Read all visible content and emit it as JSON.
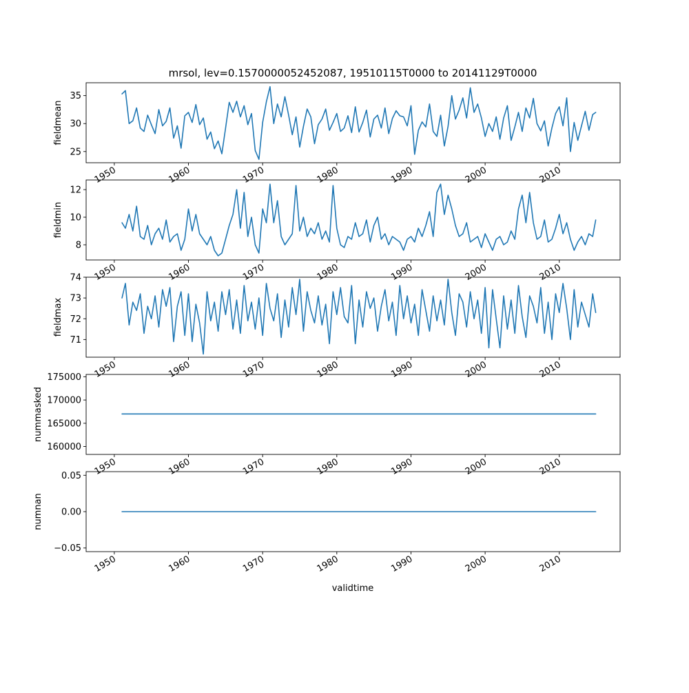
{
  "figure": {
    "title": "mrsol, lev=0.1570000052452087, 19510115T0000 to 20141129T0000",
    "xlabel": "validtime",
    "line_color": "#1f77b4"
  },
  "chart_data": [
    {
      "type": "line",
      "ylabel": "fieldmean",
      "x_range": [
        1946.2,
        2018.2
      ],
      "x_ticks": [
        1950,
        1960,
        1970,
        1980,
        1990,
        2000,
        2010
      ],
      "x_tick_labels": [
        "1950",
        "1960",
        "1970",
        "1980",
        "1990",
        "2000",
        "2010"
      ],
      "ylim": [
        23.0,
        37.3
      ],
      "y_ticks": [
        25,
        30,
        35
      ],
      "y_tick_labels": [
        "25",
        "30",
        "35"
      ],
      "grid": false,
      "x": [
        1951.04,
        1951.5,
        1952.0,
        1952.5,
        1953.0,
        1953.5,
        1954.0,
        1954.5,
        1955.0,
        1955.5,
        1956.0,
        1956.5,
        1957.0,
        1957.5,
        1958.0,
        1958.5,
        1959.0,
        1959.5,
        1960.0,
        1960.5,
        1961.0,
        1961.5,
        1962.0,
        1962.5,
        1963.0,
        1963.5,
        1964.0,
        1964.5,
        1965.0,
        1965.5,
        1966.0,
        1966.5,
        1967.0,
        1967.5,
        1968.0,
        1968.5,
        1969.0,
        1969.5,
        1970.0,
        1970.5,
        1971.0,
        1971.5,
        1972.0,
        1972.5,
        1973.0,
        1973.5,
        1974.0,
        1974.5,
        1975.0,
        1975.5,
        1976.0,
        1976.5,
        1977.0,
        1977.5,
        1978.0,
        1978.5,
        1979.0,
        1979.5,
        1980.0,
        1980.5,
        1981.0,
        1981.5,
        1982.0,
        1982.5,
        1983.0,
        1983.5,
        1984.0,
        1984.5,
        1985.0,
        1985.5,
        1986.0,
        1986.5,
        1987.0,
        1987.5,
        1988.0,
        1988.5,
        1989.0,
        1989.5,
        1990.0,
        1990.5,
        1991.0,
        1991.5,
        1992.0,
        1992.5,
        1993.0,
        1993.5,
        1994.0,
        1994.5,
        1995.0,
        1995.5,
        1996.0,
        1996.5,
        1997.0,
        1997.5,
        1998.0,
        1998.5,
        1999.0,
        1999.5,
        2000.0,
        2000.5,
        2001.0,
        2001.5,
        2002.0,
        2002.5,
        2003.0,
        2003.5,
        2004.0,
        2004.5,
        2005.0,
        2005.5,
        2006.0,
        2006.5,
        2007.0,
        2007.5,
        2008.0,
        2008.5,
        2009.0,
        2009.5,
        2010.0,
        2010.5,
        2011.0,
        2011.5,
        2012.0,
        2012.5,
        2013.0,
        2013.5,
        2014.0,
        2014.5,
        2014.91
      ],
      "values": [
        35.3,
        35.9,
        30.0,
        30.5,
        32.8,
        29.2,
        28.6,
        31.5,
        29.8,
        28.2,
        32.5,
        29.6,
        30.4,
        32.8,
        27.4,
        29.6,
        25.6,
        31.4,
        32.0,
        30.2,
        33.4,
        29.8,
        31.0,
        27.2,
        28.5,
        25.5,
        26.9,
        24.6,
        29.2,
        33.8,
        32.0,
        34.0,
        31.2,
        33.2,
        29.8,
        31.8,
        25.2,
        23.6,
        30.2,
        33.9,
        36.6,
        30.0,
        33.5,
        31.2,
        34.8,
        31.5,
        28.0,
        31.2,
        25.8,
        29.5,
        32.6,
        31.2,
        26.4,
        29.8,
        30.8,
        32.6,
        28.8,
        30.2,
        31.8,
        28.6,
        29.2,
        31.4,
        28.4,
        33.0,
        28.5,
        30.2,
        32.4,
        27.6,
        30.8,
        31.5,
        29.2,
        32.8,
        28.2,
        30.9,
        32.3,
        31.4,
        31.2,
        29.6,
        33.2,
        24.5,
        28.8,
        30.3,
        29.4,
        33.5,
        28.6,
        27.7,
        31.5,
        26.0,
        29.5,
        35.0,
        30.8,
        32.4,
        34.6,
        31.0,
        36.4,
        32.0,
        33.5,
        31.0,
        27.7,
        30.0,
        28.6,
        31.2,
        27.2,
        31.0,
        33.2,
        27.0,
        29.4,
        32.0,
        28.6,
        32.8,
        31.0,
        34.5,
        30.0,
        28.7,
        30.5,
        26.0,
        29.2,
        31.8,
        33.0,
        29.6,
        34.6,
        25.0,
        30.2,
        27.0,
        29.6,
        32.2,
        28.8,
        31.6,
        32.0
      ]
    },
    {
      "type": "line",
      "ylabel": "fieldmin",
      "x_range": [
        1946.2,
        2018.2
      ],
      "x_ticks": [
        1950,
        1960,
        1970,
        1980,
        1990,
        2000,
        2010
      ],
      "x_tick_labels": [
        "1950",
        "1960",
        "1970",
        "1980",
        "1990",
        "2000",
        "2010"
      ],
      "ylim": [
        6.9,
        12.7
      ],
      "y_ticks": [
        8,
        10,
        12
      ],
      "y_tick_labels": [
        "8",
        "10",
        "12"
      ],
      "grid": false,
      "x": [
        1951.04,
        1951.5,
        1952.0,
        1952.5,
        1953.0,
        1953.5,
        1954.0,
        1954.5,
        1955.0,
        1955.5,
        1956.0,
        1956.5,
        1957.0,
        1957.5,
        1958.0,
        1958.5,
        1959.0,
        1959.5,
        1960.0,
        1960.5,
        1961.0,
        1961.5,
        1962.0,
        1962.5,
        1963.0,
        1963.5,
        1964.0,
        1964.5,
        1965.0,
        1965.5,
        1966.0,
        1966.5,
        1967.0,
        1967.5,
        1968.0,
        1968.5,
        1969.0,
        1969.5,
        1970.0,
        1970.5,
        1971.0,
        1971.5,
        1972.0,
        1972.5,
        1973.0,
        1973.5,
        1974.0,
        1974.5,
        1975.0,
        1975.5,
        1976.0,
        1976.5,
        1977.0,
        1977.5,
        1978.0,
        1978.5,
        1979.0,
        1979.5,
        1980.0,
        1980.5,
        1981.0,
        1981.5,
        1982.0,
        1982.5,
        1983.0,
        1983.5,
        1984.0,
        1984.5,
        1985.0,
        1985.5,
        1986.0,
        1986.5,
        1987.0,
        1987.5,
        1988.0,
        1988.5,
        1989.0,
        1989.5,
        1990.0,
        1990.5,
        1991.0,
        1991.5,
        1992.0,
        1992.5,
        1993.0,
        1993.5,
        1994.0,
        1994.5,
        1995.0,
        1995.5,
        1996.0,
        1996.5,
        1997.0,
        1997.5,
        1998.0,
        1998.5,
        1999.0,
        1999.5,
        2000.0,
        2000.5,
        2001.0,
        2001.5,
        2002.0,
        2002.5,
        2003.0,
        2003.5,
        2004.0,
        2004.5,
        2005.0,
        2005.5,
        2006.0,
        2006.5,
        2007.0,
        2007.5,
        2008.0,
        2008.5,
        2009.0,
        2009.5,
        2010.0,
        2010.5,
        2011.0,
        2011.5,
        2012.0,
        2012.5,
        2013.0,
        2013.5,
        2014.0,
        2014.5,
        2014.91
      ],
      "values": [
        9.6,
        9.2,
        10.2,
        9.0,
        10.8,
        8.6,
        8.4,
        9.4,
        8.0,
        8.8,
        9.2,
        8.4,
        9.8,
        8.2,
        8.6,
        8.8,
        7.6,
        8.4,
        10.6,
        9.0,
        10.2,
        8.8,
        8.4,
        8.0,
        8.6,
        7.6,
        7.2,
        7.4,
        8.4,
        9.4,
        10.2,
        12.0,
        9.2,
        11.8,
        8.6,
        10.0,
        8.0,
        7.4,
        10.6,
        9.6,
        12.4,
        9.6,
        11.2,
        8.6,
        8.0,
        8.4,
        8.8,
        12.3,
        9.0,
        10.0,
        8.6,
        9.2,
        8.8,
        9.6,
        8.4,
        9.0,
        8.2,
        12.3,
        9.2,
        8.0,
        7.8,
        8.6,
        8.4,
        9.6,
        8.6,
        8.8,
        9.8,
        8.2,
        9.4,
        10.0,
        8.4,
        8.8,
        8.0,
        8.6,
        8.4,
        8.2,
        7.6,
        8.4,
        8.6,
        8.2,
        9.2,
        8.6,
        9.4,
        10.4,
        8.6,
        11.8,
        12.4,
        10.2,
        11.6,
        10.6,
        9.4,
        8.6,
        8.8,
        9.6,
        8.2,
        8.4,
        8.6,
        7.8,
        8.8,
        8.2,
        7.6,
        8.4,
        8.6,
        8.0,
        8.2,
        9.0,
        8.4,
        10.6,
        11.6,
        9.6,
        11.8,
        9.6,
        8.4,
        8.6,
        9.8,
        8.2,
        8.4,
        9.2,
        10.2,
        8.8,
        9.6,
        8.4,
        7.6,
        8.2,
        8.6,
        8.0,
        8.8,
        8.6,
        9.8
      ]
    },
    {
      "type": "line",
      "ylabel": "fieldmax",
      "x_range": [
        1946.2,
        2018.2
      ],
      "x_ticks": [
        1950,
        1960,
        1970,
        1980,
        1990,
        2000,
        2010
      ],
      "x_tick_labels": [
        "1950",
        "1960",
        "1970",
        "1980",
        "1990",
        "2000",
        "2010"
      ],
      "ylim": [
        70.15,
        74.0
      ],
      "y_ticks": [
        71,
        72,
        73,
        74
      ],
      "y_tick_labels": [
        "71",
        "72",
        "73",
        "74"
      ],
      "grid": false,
      "x": [
        1951.04,
        1951.5,
        1952.0,
        1952.5,
        1953.0,
        1953.5,
        1954.0,
        1954.5,
        1955.0,
        1955.5,
        1956.0,
        1956.5,
        1957.0,
        1957.5,
        1958.0,
        1958.5,
        1959.0,
        1959.5,
        1960.0,
        1960.5,
        1961.0,
        1961.5,
        1962.0,
        1962.5,
        1963.0,
        1963.5,
        1964.0,
        1964.5,
        1965.0,
        1965.5,
        1966.0,
        1966.5,
        1967.0,
        1967.5,
        1968.0,
        1968.5,
        1969.0,
        1969.5,
        1970.0,
        1970.5,
        1971.0,
        1971.5,
        1972.0,
        1972.5,
        1973.0,
        1973.5,
        1974.0,
        1974.5,
        1975.0,
        1975.5,
        1976.0,
        1976.5,
        1977.0,
        1977.5,
        1978.0,
        1978.5,
        1979.0,
        1979.5,
        1980.0,
        1980.5,
        1981.0,
        1981.5,
        1982.0,
        1982.5,
        1983.0,
        1983.5,
        1984.0,
        1984.5,
        1985.0,
        1985.5,
        1986.0,
        1986.5,
        1987.0,
        1987.5,
        1988.0,
        1988.5,
        1989.0,
        1989.5,
        1990.0,
        1990.5,
        1991.0,
        1991.5,
        1992.0,
        1992.5,
        1993.0,
        1993.5,
        1994.0,
        1994.5,
        1995.0,
        1995.5,
        1996.0,
        1996.5,
        1997.0,
        1997.5,
        1998.0,
        1998.5,
        1999.0,
        1999.5,
        2000.0,
        2000.5,
        2001.0,
        2001.5,
        2002.0,
        2002.5,
        2003.0,
        2003.5,
        2004.0,
        2004.5,
        2005.0,
        2005.5,
        2006.0,
        2006.5,
        2007.0,
        2007.5,
        2008.0,
        2008.5,
        2009.0,
        2009.5,
        2010.0,
        2010.5,
        2011.0,
        2011.5,
        2012.0,
        2012.5,
        2013.0,
        2013.5,
        2014.0,
        2014.5,
        2014.91
      ],
      "values": [
        73.0,
        73.7,
        71.7,
        72.8,
        72.4,
        73.2,
        71.3,
        72.6,
        72.0,
        73.1,
        71.6,
        73.4,
        72.6,
        73.5,
        70.9,
        72.6,
        73.3,
        71.2,
        73.2,
        70.9,
        72.7,
        71.8,
        70.3,
        73.3,
        71.9,
        72.8,
        71.4,
        73.3,
        72.2,
        73.4,
        71.5,
        72.9,
        71.3,
        73.6,
        71.9,
        72.8,
        71.5,
        73.0,
        71.2,
        73.7,
        72.5,
        71.9,
        73.2,
        71.1,
        72.9,
        71.6,
        73.5,
        72.2,
        73.9,
        71.4,
        73.3,
        72.4,
        71.8,
        73.1,
        71.7,
        72.7,
        70.8,
        73.3,
        72.2,
        73.5,
        72.1,
        71.8,
        73.6,
        70.8,
        72.9,
        71.6,
        73.3,
        72.5,
        73.0,
        71.4,
        72.6,
        73.4,
        71.9,
        72.8,
        71.2,
        73.6,
        72.0,
        73.1,
        71.8,
        72.7,
        71.2,
        73.4,
        72.4,
        71.4,
        73.1,
        71.9,
        72.9,
        71.7,
        73.9,
        72.3,
        71.2,
        73.2,
        72.8,
        71.6,
        73.3,
        72.0,
        72.9,
        71.3,
        73.5,
        70.6,
        73.4,
        72.0,
        70.6,
        73.1,
        71.5,
        72.9,
        71.3,
        73.6,
        72.1,
        71.1,
        73.1,
        72.6,
        71.8,
        73.5,
        71.3,
        72.8,
        71.0,
        73.2,
        72.3,
        73.7,
        72.5,
        71.0,
        73.4,
        71.6,
        72.8,
        72.2,
        71.6,
        73.2,
        72.3
      ]
    },
    {
      "type": "line",
      "ylabel": "nummasked",
      "x_range": [
        1946.2,
        2018.2
      ],
      "x_ticks": [
        1950,
        1960,
        1970,
        1980,
        1990,
        2000,
        2010
      ],
      "x_tick_labels": [
        "1950",
        "1960",
        "1970",
        "1980",
        "1990",
        "2000",
        "2010"
      ],
      "ylim": [
        158300,
        175500
      ],
      "y_ticks": [
        160000,
        165000,
        170000,
        175000
      ],
      "y_tick_labels": [
        "160000",
        "165000",
        "170000",
        "175000"
      ],
      "grid": false,
      "x": [
        1951.04,
        2014.91
      ],
      "values": [
        167000,
        167000
      ]
    },
    {
      "type": "line",
      "ylabel": "numnan",
      "x_range": [
        1946.2,
        2018.2
      ],
      "x_ticks": [
        1950,
        1960,
        1970,
        1980,
        1990,
        2000,
        2010
      ],
      "x_tick_labels": [
        "1950",
        "1960",
        "1970",
        "1980",
        "1990",
        "2000",
        "2010"
      ],
      "ylim": [
        -0.055,
        0.055
      ],
      "y_ticks": [
        -0.05,
        0.0,
        0.05
      ],
      "y_tick_labels": [
        "−0.05",
        "0.00",
        "0.05"
      ],
      "grid": false,
      "x": [
        1951.04,
        2014.91
      ],
      "values": [
        0,
        0
      ]
    }
  ]
}
